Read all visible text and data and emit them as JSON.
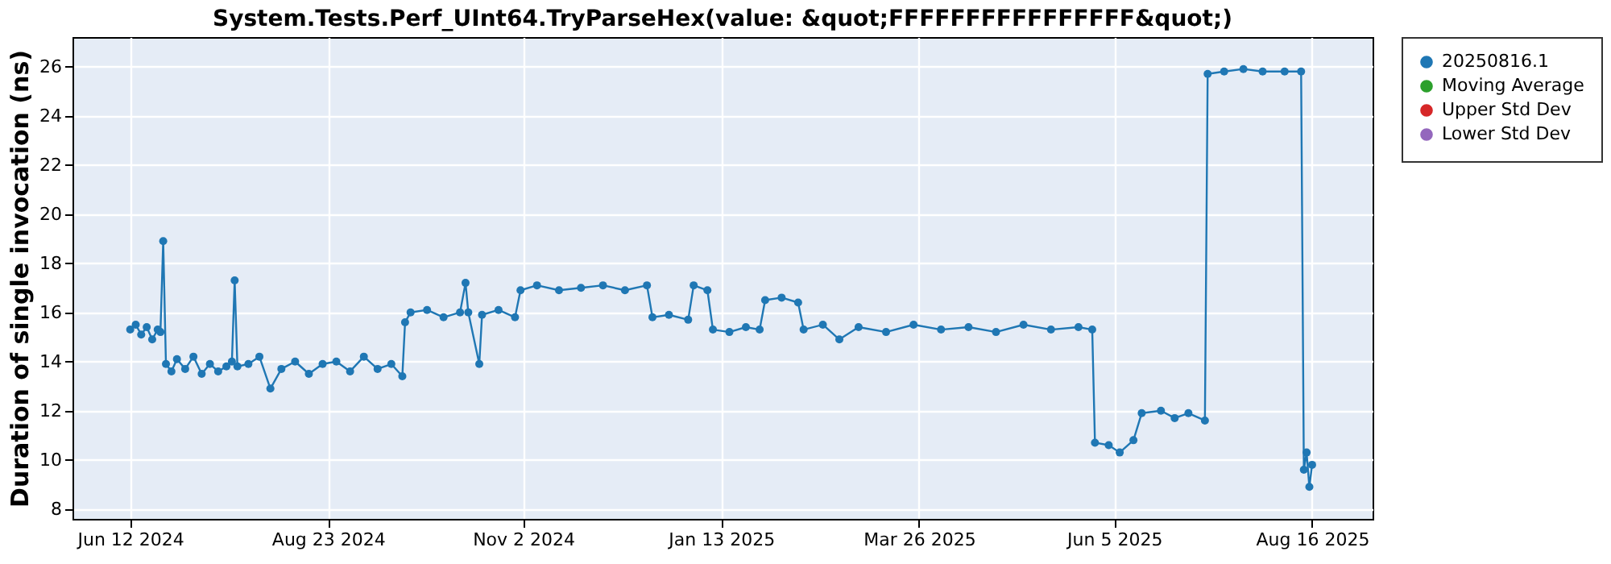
{
  "chart_data": {
    "type": "line",
    "title": "System.Tests.Perf_UInt64.TryParseHex(value: &quot;FFFFFFFFFFFFFFFF&quot;)",
    "ylabel": "Duration of single invocation (ns)",
    "xlim": [
      "2024-05-22",
      "2025-09-07"
    ],
    "xticks": [
      {
        "value": "2024-06-12",
        "label": "Jun 12 2024"
      },
      {
        "value": "2024-08-23",
        "label": "Aug 23 2024"
      },
      {
        "value": "2024-11-02",
        "label": "Nov 2 2024"
      },
      {
        "value": "2025-01-13",
        "label": "Jan 13 2025"
      },
      {
        "value": "2025-03-26",
        "label": "Mar 26 2025"
      },
      {
        "value": "2025-06-05",
        "label": "Jun 5 2025"
      },
      {
        "value": "2025-08-16",
        "label": "Aug 16 2025"
      }
    ],
    "ylim": [
      7.6,
      27.2
    ],
    "yticks": [
      8,
      10,
      12,
      14,
      16,
      18,
      20,
      22,
      24,
      26
    ],
    "grid": true,
    "legend": "right",
    "marker": "circle",
    "series": [
      {
        "name": "20250816.1",
        "color": "#1f77b4",
        "x": [
          "2024-06-12",
          "2024-06-14",
          "2024-06-16",
          "2024-06-18",
          "2024-06-20",
          "2024-06-22",
          "2024-06-23",
          "2024-06-24",
          "2024-06-25",
          "2024-06-27",
          "2024-06-29",
          "2024-07-02",
          "2024-07-05",
          "2024-07-08",
          "2024-07-11",
          "2024-07-14",
          "2024-07-17",
          "2024-07-19",
          "2024-07-20",
          "2024-07-21",
          "2024-07-25",
          "2024-07-29",
          "2024-08-02",
          "2024-08-06",
          "2024-08-11",
          "2024-08-16",
          "2024-08-21",
          "2024-08-26",
          "2024-08-31",
          "2024-09-05",
          "2024-09-10",
          "2024-09-15",
          "2024-09-19",
          "2024-09-20",
          "2024-09-22",
          "2024-09-28",
          "2024-10-04",
          "2024-10-10",
          "2024-10-12",
          "2024-10-13",
          "2024-10-17",
          "2024-10-18",
          "2024-10-24",
          "2024-10-30",
          "2024-11-01",
          "2024-11-07",
          "2024-11-15",
          "2024-11-23",
          "2024-12-01",
          "2024-12-09",
          "2024-12-17",
          "2024-12-19",
          "2024-12-25",
          "2025-01-01",
          "2025-01-03",
          "2025-01-08",
          "2025-01-10",
          "2025-01-16",
          "2025-01-22",
          "2025-01-27",
          "2025-01-29",
          "2025-02-04",
          "2025-02-10",
          "2025-02-12",
          "2025-02-19",
          "2025-02-25",
          "2025-03-04",
          "2025-03-14",
          "2025-03-24",
          "2025-04-03",
          "2025-04-13",
          "2025-04-23",
          "2025-05-03",
          "2025-05-13",
          "2025-05-23",
          "2025-05-28",
          "2025-05-29",
          "2025-06-03",
          "2025-06-07",
          "2025-06-12",
          "2025-06-15",
          "2025-06-22",
          "2025-06-27",
          "2025-07-02",
          "2025-07-08",
          "2025-07-09",
          "2025-07-15",
          "2025-07-22",
          "2025-07-29",
          "2025-08-06",
          "2025-08-12",
          "2025-08-13",
          "2025-08-14",
          "2025-08-15",
          "2025-08-16"
        ],
        "values": [
          15.3,
          15.5,
          15.1,
          15.4,
          14.9,
          15.3,
          15.2,
          18.9,
          13.9,
          13.6,
          14.1,
          13.7,
          14.2,
          13.5,
          13.9,
          13.6,
          13.8,
          14.0,
          17.3,
          13.8,
          13.9,
          14.2,
          12.9,
          13.7,
          14.0,
          13.5,
          13.9,
          14.0,
          13.6,
          14.2,
          13.7,
          13.9,
          13.4,
          15.6,
          16.0,
          16.1,
          15.8,
          16.0,
          17.2,
          16.0,
          13.9,
          15.9,
          16.1,
          15.8,
          16.9,
          17.1,
          16.9,
          17.0,
          17.1,
          16.9,
          17.1,
          15.8,
          15.9,
          15.7,
          17.1,
          16.9,
          15.3,
          15.2,
          15.4,
          15.3,
          16.5,
          16.6,
          16.4,
          15.3,
          15.5,
          14.9,
          15.4,
          15.2,
          15.5,
          15.3,
          15.4,
          15.2,
          15.5,
          15.3,
          15.4,
          15.3,
          10.7,
          10.6,
          10.3,
          10.8,
          11.9,
          12.0,
          11.7,
          11.9,
          11.6,
          25.7,
          25.8,
          25.9,
          25.8,
          25.8,
          25.8,
          9.6,
          10.3,
          8.9,
          9.8
        ]
      },
      {
        "name": "Moving Average",
        "color": "#2ca02c"
      },
      {
        "name": "Upper Std Dev",
        "color": "#d62728"
      },
      {
        "name": "Lower Std Dev",
        "color": "#9467bd"
      }
    ]
  }
}
